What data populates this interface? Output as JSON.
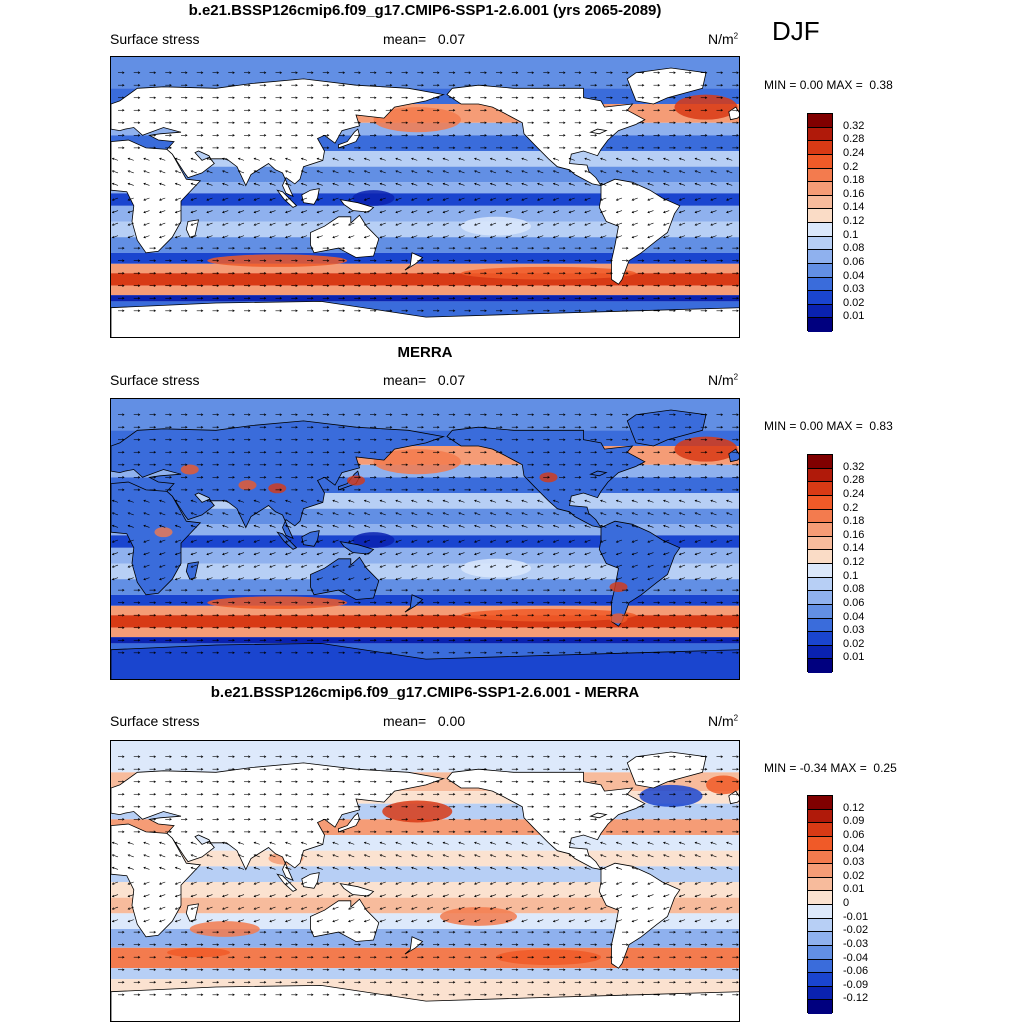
{
  "season": "DJF",
  "panels": [
    {
      "id": "model",
      "title": "b.e21.BSSP126cmip6.f09_g17.CMIP6-SSP1-2.6.001 (yrs 2065-2089)",
      "variable": "Surface stress",
      "mean_label": "mean=",
      "mean_value": "0.07",
      "units": "N/m",
      "units_sup": "2",
      "min_label": "MIN =",
      "min_value": "0.00",
      "max_label": "MAX =",
      "max_value": "0.38",
      "colorbar_labels": [
        "0.32",
        "0.28",
        "0.24",
        "0.2",
        "0.18",
        "0.16",
        "0.14",
        "0.12",
        "0.1",
        "0.08",
        "0.06",
        "0.04",
        "0.03",
        "0.02",
        "0.01"
      ],
      "colorbar_colors": [
        "#800000",
        "#b01a0a",
        "#d83a15",
        "#f05a28",
        "#f37b4e",
        "#f59c76",
        "#f7bb9c",
        "#fadcc6",
        "#dbe8fb",
        "#b7cff5",
        "#8fb1ee",
        "#628fe4",
        "#3a6cdb",
        "#1a45cf",
        "#0a22b0",
        "#00007f"
      ]
    },
    {
      "id": "obs",
      "title": "MERRA",
      "variable": "Surface stress",
      "mean_label": "mean=",
      "mean_value": "0.07",
      "units": "N/m",
      "units_sup": "2",
      "min_label": "MIN =",
      "min_value": "0.00",
      "max_label": "MAX =",
      "max_value": "0.83",
      "colorbar_labels": [
        "0.32",
        "0.28",
        "0.24",
        "0.2",
        "0.18",
        "0.16",
        "0.14",
        "0.12",
        "0.1",
        "0.08",
        "0.06",
        "0.04",
        "0.03",
        "0.02",
        "0.01"
      ],
      "colorbar_colors": [
        "#800000",
        "#b01a0a",
        "#d83a15",
        "#f05a28",
        "#f37b4e",
        "#f59c76",
        "#f7bb9c",
        "#fadcc6",
        "#dbe8fb",
        "#b7cff5",
        "#8fb1ee",
        "#628fe4",
        "#3a6cdb",
        "#1a45cf",
        "#0a22b0",
        "#00007f"
      ]
    },
    {
      "id": "diff",
      "title": "b.e21.BSSP126cmip6.f09_g17.CMIP6-SSP1-2.6.001 - MERRA",
      "variable": "Surface stress",
      "mean_label": "mean=",
      "mean_value": "0.00",
      "units": "N/m",
      "units_sup": "2",
      "min_label": "MIN =",
      "min_value": "-0.34",
      "max_label": "MAX =",
      "max_value": "0.25",
      "colorbar_labels": [
        "0.12",
        "0.09",
        "0.06",
        "0.04",
        "0.03",
        "0.02",
        "0.01",
        "0",
        "-0.01",
        "-0.02",
        "-0.03",
        "-0.04",
        "-0.06",
        "-0.09",
        "-0.12"
      ],
      "colorbar_colors": [
        "#800000",
        "#b01a0a",
        "#d83a15",
        "#f05a28",
        "#f37b4e",
        "#f59c76",
        "#f7bb9c",
        "#fbe2d0",
        "#dde9fb",
        "#b7cff5",
        "#8fb1ee",
        "#628fe4",
        "#3a6cdb",
        "#1a45cf",
        "#0a22b0",
        "#00007f"
      ]
    }
  ]
}
